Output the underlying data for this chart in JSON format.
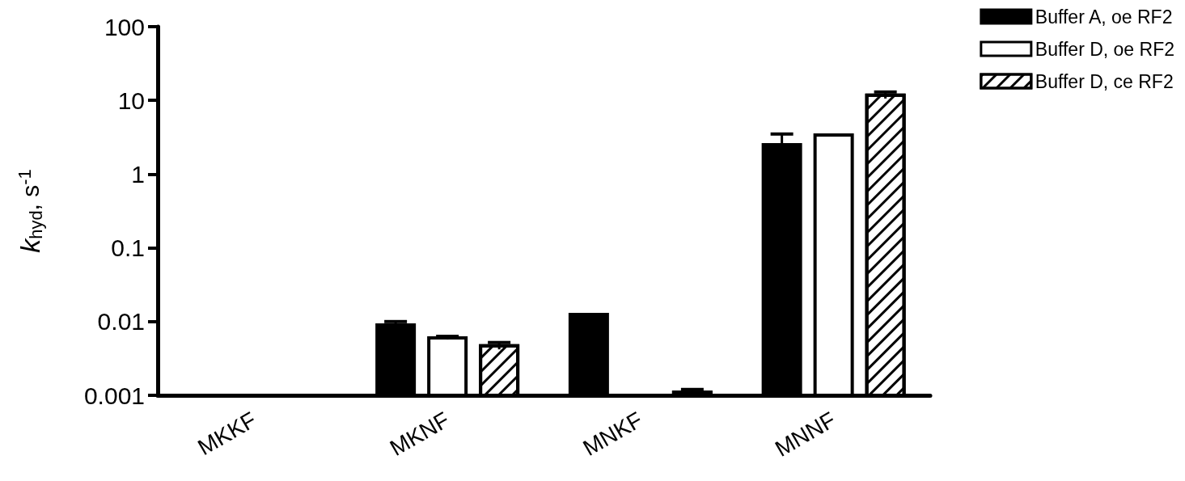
{
  "chart_data": {
    "type": "bar",
    "ylabel": "k$_{hyd}$, s$^{-1}$",
    "categories": [
      "MKKF",
      "MKNF",
      "MNKF",
      "MNNF"
    ],
    "series": [
      {
        "name": "Buffer A, oe RF2",
        "color": "#000000",
        "values": [
          null,
          0.009,
          0.0125,
          2.5
        ],
        "errors": [
          null,
          0.001,
          null,
          1.0
        ]
      },
      {
        "name": "Buffer D, oe RF2",
        "color": "#ffffff",
        "values": [
          null,
          0.006,
          null,
          3.4
        ],
        "errors": [
          null,
          0.0003,
          null,
          null
        ]
      },
      {
        "name": "Buffer D, ce RF2",
        "color": "#ffffff",
        "values": [
          null,
          0.0047,
          0.0011,
          11.8
        ],
        "errors": [
          null,
          0.0005,
          0.0001,
          1.2
        ]
      }
    ],
    "log": "y",
    "ylim": [
      0.001,
      100
    ],
    "yticks": [
      0.001,
      0.01,
      0.1,
      1,
      10,
      100
    ],
    "grid": false,
    "legend": "top right"
  }
}
